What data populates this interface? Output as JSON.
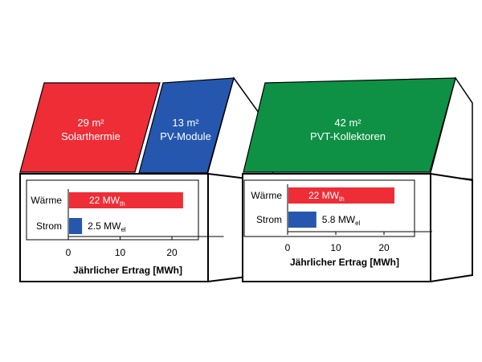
{
  "colors": {
    "solarthermie": "#ef2d36",
    "pv": "#2557ae",
    "pvt": "#0e9145",
    "heat_bar": "#ef2d36",
    "power_bar": "#2557ae",
    "outline": "#000000"
  },
  "left_house": {
    "roof_thermal": {
      "area": "29 m²",
      "name": "Solarthermie"
    },
    "roof_pv": {
      "area": "13 m²",
      "name": "PV-Module"
    },
    "chart_data": {
      "type": "bar",
      "orientation": "horizontal",
      "categories": [
        "Wärme",
        "Strom"
      ],
      "values": [
        22,
        2.5
      ],
      "value_labels": [
        {
          "main": "22  MW",
          "sub": "th"
        },
        {
          "main": "2.5 MW",
          "sub": "el"
        }
      ],
      "xlabel": "Jährlicher Ertrag [MWh]",
      "xlim": [
        0,
        30
      ],
      "xticks": [
        0,
        10,
        20
      ],
      "grid": false
    }
  },
  "right_house": {
    "roof_pvt": {
      "area": "42 m²",
      "name": "PVT-Kollektoren"
    },
    "chart_data": {
      "type": "bar",
      "orientation": "horizontal",
      "categories": [
        "Wärme",
        "Strom"
      ],
      "values": [
        22,
        5.8
      ],
      "value_labels": [
        {
          "main": "22 MW",
          "sub": "th"
        },
        {
          "main": "5.8 MW",
          "sub": "el"
        }
      ],
      "xlabel": "Jährlicher Ertrag [MWh]",
      "xlim": [
        0,
        30
      ],
      "xticks": [
        0,
        10,
        20
      ],
      "grid": false
    }
  }
}
